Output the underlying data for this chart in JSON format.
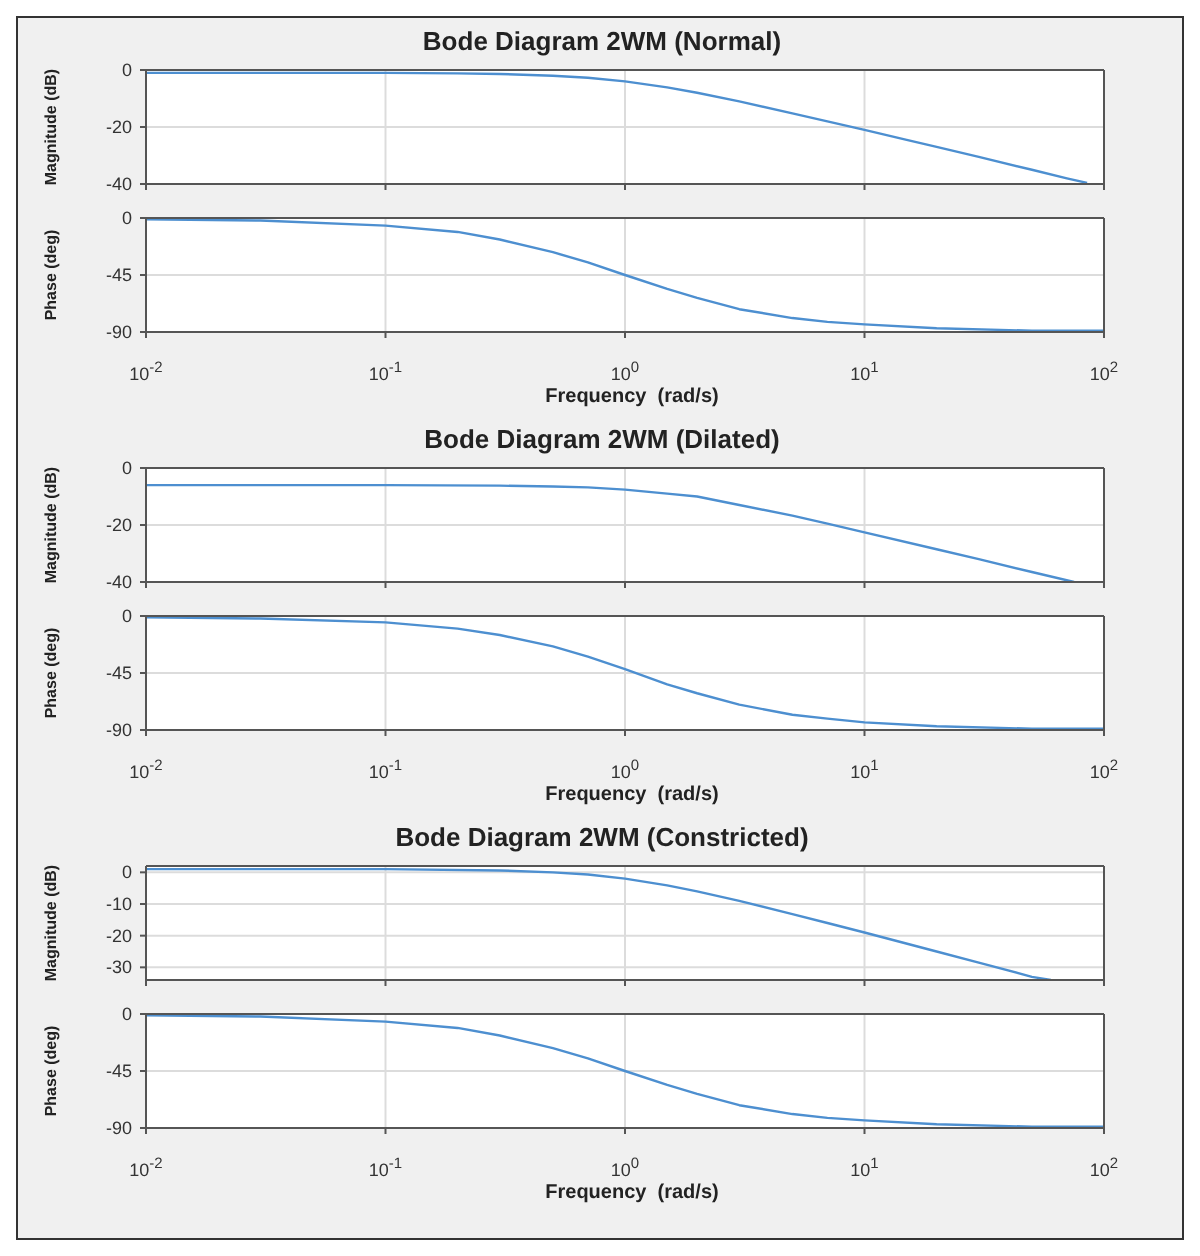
{
  "chart_data": [
    {
      "type": "line",
      "title": "Bode Diagram 2WM (Normal)",
      "ylabel": "Magnitude (dB)",
      "log": "x",
      "grid": true,
      "tick_labels": "y",
      "xlim": [
        0.01,
        100
      ],
      "xticks": [
        0.01,
        0.1,
        1,
        10,
        100
      ],
      "ylim": [
        -40,
        0
      ],
      "yticks": [
        -40,
        -20,
        0
      ],
      "x": [
        0.01,
        0.03,
        0.1,
        0.2,
        0.3,
        0.5,
        0.7,
        1,
        1.5,
        2,
        3,
        5,
        7,
        10,
        15,
        20,
        30,
        50,
        70,
        85
      ],
      "series": [
        {
          "color": "#4d8fd0",
          "values": [
            -1,
            -1,
            -1,
            -1.2,
            -1.4,
            -2,
            -2.7,
            -4,
            -6.1,
            -8,
            -11,
            -15.2,
            -18,
            -21,
            -24.5,
            -27,
            -30.5,
            -35,
            -38,
            -39.6
          ]
        }
      ]
    },
    {
      "type": "line",
      "ylabel": "Phase (deg)",
      "xlabel": "Frequency  (rad/s)",
      "log": "x",
      "grid": true,
      "xlim": [
        0.01,
        100
      ],
      "xticks": [
        {
          "value": 0.01,
          "label": "10$^{-2}$"
        },
        {
          "value": 0.1,
          "label": "10$^{-1}$"
        },
        {
          "value": 1,
          "label": "10$^{0}$"
        },
        {
          "value": 10,
          "label": "10$^{1}$"
        },
        {
          "value": 100,
          "label": "10$^{2}$"
        }
      ],
      "ylim": [
        -90,
        0
      ],
      "yticks": [
        -90,
        -45,
        0
      ],
      "x": [
        0.01,
        0.03,
        0.1,
        0.2,
        0.3,
        0.5,
        0.7,
        1,
        1.5,
        2,
        3,
        5,
        7,
        10,
        20,
        50,
        100
      ],
      "series": [
        {
          "color": "#4d8fd0",
          "values": [
            -1,
            -2,
            -6,
            -11,
            -17,
            -27,
            -35,
            -45,
            -56,
            -63,
            -72,
            -79,
            -82,
            -84,
            -87,
            -89,
            -89
          ]
        }
      ]
    },
    {
      "type": "line",
      "title": "Bode Diagram 2WM (Dilated)",
      "ylabel": "Magnitude (dB)",
      "log": "x",
      "grid": true,
      "tick_labels": "y",
      "xlim": [
        0.01,
        100
      ],
      "xticks": [
        0.01,
        0.1,
        1,
        10,
        100
      ],
      "ylim": [
        -40,
        0
      ],
      "yticks": [
        -40,
        -20,
        0
      ],
      "x": [
        0.01,
        0.03,
        0.1,
        0.3,
        0.5,
        0.7,
        1,
        1.5,
        2,
        3,
        5,
        7,
        10,
        20,
        30,
        50,
        75
      ],
      "series": [
        {
          "color": "#4d8fd0",
          "values": [
            -6,
            -6,
            -6,
            -6.2,
            -6.5,
            -6.8,
            -7.6,
            -9,
            -10,
            -13,
            -16.7,
            -19.5,
            -22.6,
            -28.5,
            -32,
            -36.5,
            -40
          ]
        }
      ]
    },
    {
      "type": "line",
      "ylabel": "Phase (deg)",
      "xlabel": "Frequency  (rad/s)",
      "log": "x",
      "grid": true,
      "xlim": [
        0.01,
        100
      ],
      "xticks": [
        {
          "value": 0.01,
          "label": "10$^{-2}$"
        },
        {
          "value": 0.1,
          "label": "10$^{-1}$"
        },
        {
          "value": 1,
          "label": "10$^{0}$"
        },
        {
          "value": 10,
          "label": "10$^{1}$"
        },
        {
          "value": 100,
          "label": "10$^{2}$"
        }
      ],
      "ylim": [
        -90,
        0
      ],
      "yticks": [
        -90,
        -45,
        0
      ],
      "x": [
        0.01,
        0.03,
        0.1,
        0.2,
        0.3,
        0.5,
        0.7,
        1,
        1.5,
        2,
        3,
        5,
        7,
        10,
        20,
        50,
        100
      ],
      "series": [
        {
          "color": "#4d8fd0",
          "values": [
            -1,
            -2,
            -5,
            -10,
            -15,
            -24,
            -32,
            -42,
            -54,
            -61,
            -70,
            -78,
            -81,
            -84,
            -87,
            -89,
            -89
          ]
        }
      ]
    },
    {
      "type": "line",
      "title": "Bode Diagram 2WM (Constricted)",
      "ylabel": "Magnitude (dB)",
      "log": "x",
      "grid": true,
      "tick_labels": "y",
      "xlim": [
        0.01,
        100
      ],
      "xticks": [
        0.01,
        0.1,
        1,
        10,
        100
      ],
      "ylim": [
        -34,
        2
      ],
      "yticks": [
        -30,
        -20,
        -10,
        0
      ],
      "x": [
        0.01,
        0.03,
        0.1,
        0.3,
        0.5,
        0.7,
        1,
        1.5,
        2,
        3,
        5,
        7,
        10,
        20,
        30,
        50,
        60
      ],
      "series": [
        {
          "color": "#4d8fd0",
          "values": [
            1,
            1,
            1,
            0.6,
            0,
            -0.7,
            -2,
            -4.1,
            -6,
            -9,
            -13.2,
            -16,
            -19,
            -25,
            -28.5,
            -33,
            -34
          ]
        }
      ]
    },
    {
      "type": "line",
      "ylabel": "Phase (deg)",
      "xlabel": "Frequency  (rad/s)",
      "log": "x",
      "grid": true,
      "xlim": [
        0.01,
        100
      ],
      "xticks": [
        {
          "value": 0.01,
          "label": "10$^{-2}$"
        },
        {
          "value": 0.1,
          "label": "10$^{-1}$"
        },
        {
          "value": 1,
          "label": "10$^{0}$"
        },
        {
          "value": 10,
          "label": "10$^{1}$"
        },
        {
          "value": 100,
          "label": "10$^{2}$"
        }
      ],
      "ylim": [
        -90,
        0
      ],
      "yticks": [
        -90,
        -45,
        0
      ],
      "x": [
        0.01,
        0.03,
        0.1,
        0.2,
        0.3,
        0.5,
        0.7,
        1,
        1.5,
        2,
        3,
        5,
        7,
        10,
        20,
        50,
        100
      ],
      "series": [
        {
          "color": "#4d8fd0",
          "values": [
            -1,
            -2,
            -6,
            -11,
            -17,
            -27,
            -35,
            -45,
            -56,
            -63,
            -72,
            -79,
            -82,
            -84,
            -87,
            -89,
            -89
          ]
        }
      ]
    }
  ]
}
